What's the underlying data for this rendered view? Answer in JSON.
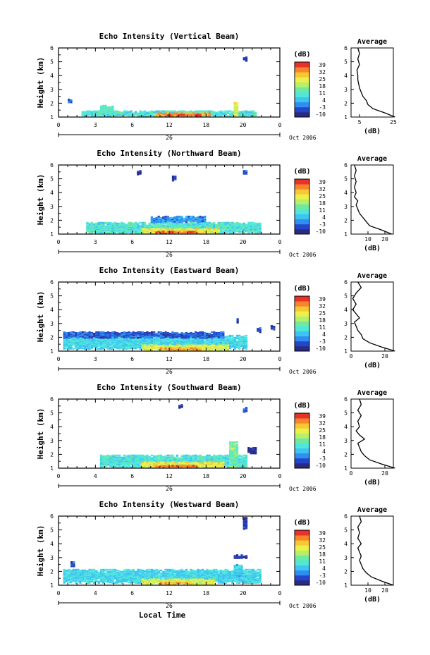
{
  "figure": {
    "x_axis_label": "Local Time",
    "date_label": "Oct 2006",
    "day_label": "26",
    "colorbar_unit": "(dB)",
    "colorbar_ticks": [
      "39",
      "32",
      "25",
      "18",
      "11",
      "4",
      "-3",
      "-10"
    ],
    "profile_title": "Average",
    "profile_xlabel": "(dB)",
    "height_axis_label": "Height (km)",
    "colormap": [
      "#2a2a82",
      "#2546c8",
      "#2f8ef0",
      "#3fc4f2",
      "#4fe7dc",
      "#6fe9a0",
      "#b6ef6a",
      "#eef04a",
      "#f8c735",
      "#f7852b",
      "#e9322a"
    ]
  },
  "chart_data": [
    {
      "type": "heatmap",
      "title": "Echo Intensity (Vertical Beam)",
      "xlabel": "",
      "ylabel": "Height (km)",
      "x_ticks": [
        "0",
        "3",
        "6",
        "12",
        "18",
        "20",
        "0"
      ],
      "y_ticks": [
        "6",
        "5",
        "4",
        "3",
        "2",
        "1"
      ],
      "xlim": [
        0,
        24
      ],
      "ylim": [
        1,
        6
      ],
      "clim": [
        -10,
        39
      ],
      "echo_regions": [
        {
          "t0": 2.5,
          "t1": 21.5,
          "h0": 1.0,
          "h1": 1.4,
          "db": 10
        },
        {
          "t0": 10.5,
          "t1": 16.5,
          "h0": 1.0,
          "h1": 1.25,
          "db": 30
        },
        {
          "t0": 11.5,
          "t1": 15.5,
          "h0": 1.0,
          "h1": 1.12,
          "db": 36
        },
        {
          "t0": 4.5,
          "t1": 6.0,
          "h0": 1.2,
          "h1": 1.8,
          "db": 12
        },
        {
          "t0": 19.0,
          "t1": 19.5,
          "h0": 1.0,
          "h1": 2.0,
          "db": 22
        },
        {
          "t0": 1.0,
          "t1": 1.3,
          "h0": 2.0,
          "h1": 2.2,
          "db": 0
        },
        {
          "t0": 20.0,
          "t1": 20.3,
          "h0": 5.0,
          "h1": 5.3,
          "db": -6
        }
      ],
      "profile": {
        "xlim": [
          0,
          25
        ],
        "x_ticks": [
          "5",
          "25"
        ],
        "x_tick_values": [
          5,
          25
        ],
        "heights": [
          1.0,
          1.3,
          1.6,
          1.9,
          2.2,
          2.5,
          2.8,
          3.1,
          3.4,
          3.7,
          4.0,
          4.4,
          4.8,
          5.2,
          5.6,
          6.0
        ],
        "values": [
          26,
          20,
          13,
          10,
          9,
          7,
          6,
          5,
          4.5,
          4,
          4,
          3.5,
          5,
          4,
          5,
          4
        ]
      }
    },
    {
      "type": "heatmap",
      "title": "Echo Intensity (Northward Beam)",
      "xlabel": "",
      "ylabel": "Height (km)",
      "x_ticks": [
        "0",
        "3",
        "6",
        "12",
        "18",
        "20",
        "0"
      ],
      "y_ticks": [
        "6",
        "5",
        "4",
        "3",
        "2",
        "1"
      ],
      "xlim": [
        0,
        24
      ],
      "ylim": [
        1,
        6
      ],
      "clim": [
        -10,
        39
      ],
      "echo_regions": [
        {
          "t0": 3.0,
          "t1": 22.0,
          "h0": 1.0,
          "h1": 1.8,
          "db": 10
        },
        {
          "t0": 9.0,
          "t1": 17.5,
          "h0": 1.0,
          "h1": 1.35,
          "db": 24
        },
        {
          "t0": 10.5,
          "t1": 15.0,
          "h0": 1.0,
          "h1": 1.15,
          "db": 34
        },
        {
          "t0": 10.0,
          "t1": 16.0,
          "h0": 1.8,
          "h1": 2.2,
          "db": 2
        },
        {
          "t0": 8.5,
          "t1": 8.8,
          "h0": 5.2,
          "h1": 5.5,
          "db": -6
        },
        {
          "t0": 12.3,
          "t1": 12.6,
          "h0": 4.8,
          "h1": 5.1,
          "db": -6
        },
        {
          "t0": 20.0,
          "t1": 20.3,
          "h0": 5.2,
          "h1": 5.5,
          "db": -4
        }
      ],
      "profile": {
        "xlim": [
          0,
          25
        ],
        "x_ticks": [
          "10",
          "20"
        ],
        "x_tick_values": [
          10,
          20
        ],
        "heights": [
          1.0,
          1.3,
          1.6,
          1.9,
          2.2,
          2.5,
          2.8,
          3.1,
          3.4,
          3.7,
          4.0,
          4.4,
          4.8,
          5.2,
          5.6,
          6.0
        ],
        "values": [
          24,
          18,
          11,
          9,
          7,
          5,
          4,
          3,
          4,
          2,
          3,
          2,
          3,
          2,
          3,
          2
        ]
      }
    },
    {
      "type": "heatmap",
      "title": "Echo Intensity (Eastward Beam)",
      "xlabel": "",
      "ylabel": "Height (km)",
      "x_ticks": [
        "0",
        "3",
        "6",
        "12",
        "18",
        "20",
        "0"
      ],
      "y_ticks": [
        "6",
        "5",
        "4",
        "3",
        "2",
        "1"
      ],
      "xlim": [
        0,
        24
      ],
      "ylim": [
        1,
        6
      ],
      "clim": [
        -10,
        39
      ],
      "echo_regions": [
        {
          "t0": 0.5,
          "t1": 20.5,
          "h0": 1.1,
          "h1": 2.1,
          "db": 8
        },
        {
          "t0": 0.5,
          "t1": 18.0,
          "h0": 1.9,
          "h1": 2.3,
          "db": -2
        },
        {
          "t0": 9.0,
          "t1": 18.5,
          "h0": 1.0,
          "h1": 1.4,
          "db": 22
        },
        {
          "t0": 11.0,
          "t1": 15.5,
          "h0": 1.0,
          "h1": 1.2,
          "db": 30
        },
        {
          "t0": 21.5,
          "t1": 22.0,
          "h0": 2.3,
          "h1": 2.6,
          "db": -4
        },
        {
          "t0": 23.0,
          "t1": 23.3,
          "h0": 2.5,
          "h1": 2.8,
          "db": -4
        },
        {
          "t0": 19.3,
          "t1": 19.5,
          "h0": 3.0,
          "h1": 3.3,
          "db": -6
        }
      ],
      "profile": {
        "xlim": [
          0,
          25
        ],
        "x_ticks": [
          "0",
          "20"
        ],
        "x_tick_values": [
          0,
          20
        ],
        "heights": [
          1.0,
          1.3,
          1.6,
          1.9,
          2.2,
          2.5,
          2.8,
          3.1,
          3.4,
          3.7,
          4.0,
          4.4,
          4.8,
          5.2,
          5.6,
          6.0
        ],
        "values": [
          26,
          18,
          11,
          7,
          6,
          4,
          3,
          2,
          5,
          3,
          1,
          3,
          1,
          3,
          6,
          4
        ]
      }
    },
    {
      "type": "heatmap",
      "title": "Echo Intensity (Southward Beam)",
      "xlabel": "",
      "ylabel": "Height (km)",
      "x_ticks": [
        "0",
        "4",
        "6",
        "12",
        "18",
        "20",
        "0"
      ],
      "y_ticks": [
        "6",
        "5",
        "4",
        "3",
        "2",
        "1"
      ],
      "xlim": [
        0,
        24
      ],
      "ylim": [
        1,
        6
      ],
      "clim": [
        -10,
        39
      ],
      "echo_regions": [
        {
          "t0": 4.5,
          "t1": 20.5,
          "h0": 1.0,
          "h1": 1.9,
          "db": 10
        },
        {
          "t0": 9.0,
          "t1": 18.0,
          "h0": 1.0,
          "h1": 1.4,
          "db": 24
        },
        {
          "t0": 10.5,
          "t1": 15.0,
          "h0": 1.0,
          "h1": 1.15,
          "db": 32
        },
        {
          "t0": 18.5,
          "t1": 19.5,
          "h0": 1.0,
          "h1": 2.8,
          "db": 14
        },
        {
          "t0": 20.5,
          "t1": 21.3,
          "h0": 2.0,
          "h1": 2.4,
          "db": -6
        },
        {
          "t0": 13.0,
          "t1": 13.3,
          "h0": 5.3,
          "h1": 5.5,
          "db": -6
        },
        {
          "t0": 20.0,
          "t1": 20.3,
          "h0": 5.0,
          "h1": 5.3,
          "db": -4
        }
      ],
      "profile": {
        "xlim": [
          0,
          25
        ],
        "x_ticks": [
          "0",
          "20"
        ],
        "x_tick_values": [
          0,
          20
        ],
        "heights": [
          1.0,
          1.3,
          1.6,
          1.9,
          2.2,
          2.5,
          2.8,
          3.1,
          3.4,
          3.7,
          4.0,
          4.4,
          4.8,
          5.2,
          5.6,
          6.0
        ],
        "values": [
          26,
          18,
          11,
          8,
          6,
          5,
          4,
          8,
          5,
          3,
          5,
          4,
          6,
          4,
          6,
          5
        ]
      }
    },
    {
      "type": "heatmap",
      "title": "Echo Intensity (Westward Beam)",
      "xlabel": "Local Time",
      "ylabel": "Height (km)",
      "x_ticks": [
        "0",
        "4",
        "6",
        "12",
        "18",
        "20",
        "0"
      ],
      "y_ticks": [
        "6",
        "5",
        "4",
        "3",
        "2",
        "1"
      ],
      "xlim": [
        0,
        24
      ],
      "ylim": [
        1,
        6
      ],
      "clim": [
        -10,
        39
      ],
      "echo_regions": [
        {
          "t0": 0.5,
          "t1": 22.0,
          "h0": 1.1,
          "h1": 2.1,
          "db": 8
        },
        {
          "t0": 9.0,
          "t1": 17.0,
          "h0": 1.0,
          "h1": 1.4,
          "db": 22
        },
        {
          "t0": 11.0,
          "t1": 14.5,
          "h0": 1.0,
          "h1": 1.15,
          "db": 30
        },
        {
          "t0": 19.0,
          "t1": 20.5,
          "h0": 2.9,
          "h1": 3.1,
          "db": -6
        },
        {
          "t0": 20.0,
          "t1": 20.3,
          "h0": 5.0,
          "h1": 5.8,
          "db": -4
        },
        {
          "t0": 19.0,
          "t1": 20.0,
          "h0": 1.5,
          "h1": 2.4,
          "db": 6
        },
        {
          "t0": 1.3,
          "t1": 1.6,
          "h0": 2.3,
          "h1": 2.6,
          "db": -4
        }
      ],
      "profile": {
        "xlim": [
          0,
          25
        ],
        "x_ticks": [
          "10",
          "20"
        ],
        "x_tick_values": [
          10,
          20
        ],
        "heights": [
          1.0,
          1.3,
          1.6,
          1.9,
          2.2,
          2.5,
          2.8,
          3.1,
          3.4,
          3.7,
          4.0,
          4.4,
          4.8,
          5.2,
          5.6,
          6.0
        ],
        "values": [
          25,
          18,
          12,
          9,
          7,
          6,
          5,
          6,
          5,
          4,
          6,
          4,
          5,
          4,
          6,
          5
        ]
      }
    }
  ]
}
